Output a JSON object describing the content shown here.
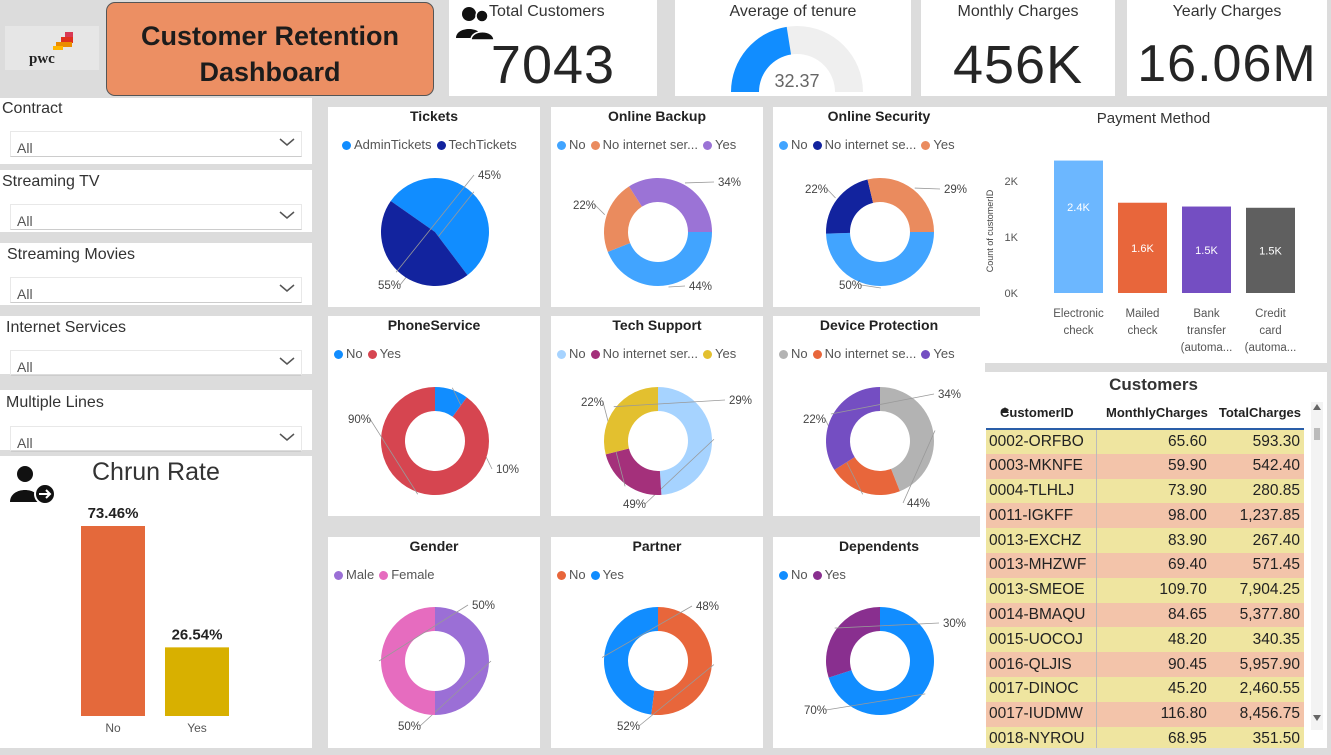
{
  "header": {
    "logo_text": "pwc",
    "title_line1": "Customer Retention",
    "title_line2": "Dashboard"
  },
  "kpis": {
    "total_customers": {
      "label": "Total Customers",
      "value": "7043"
    },
    "avg_tenure": {
      "label": "Average of tenure",
      "value": "32.37",
      "gauge_fraction": 0.45
    },
    "monthly_charges": {
      "label": "Monthly Charges",
      "value": "456K"
    },
    "yearly_charges": {
      "label": "Yearly Charges",
      "value": "16.06M"
    }
  },
  "slicers": [
    {
      "label": "Contract",
      "value": "All"
    },
    {
      "label": "Streaming TV",
      "value": "All"
    },
    {
      "label": "Streaming Movies",
      "value": "All"
    },
    {
      "label": "Internet Services",
      "value": "All"
    },
    {
      "label": "Multiple Lines",
      "value": "All"
    }
  ],
  "churn": {
    "title": "Chrun Rate",
    "bars": [
      {
        "label": "No",
        "value": 73.46,
        "text": "73.46%",
        "color": "#e4693b"
      },
      {
        "label": "Yes",
        "value": 26.54,
        "text": "26.54%",
        "color": "#d8b000"
      }
    ]
  },
  "pies": [
    {
      "title": "Tickets",
      "type": "pie",
      "legend": [
        {
          "label": "AdminTickets",
          "color": "#118dff"
        },
        {
          "label": "TechTickets",
          "color": "#12239e"
        }
      ],
      "labels": [
        "55%",
        "45%"
      ]
    },
    {
      "title": "Online Backup",
      "type": "donut",
      "legend": [
        {
          "label": "No",
          "color": "#41a4ff"
        },
        {
          "label": "No internet ser...",
          "color": "#ea8b5e"
        },
        {
          "label": "Yes",
          "color": "#9b73d6"
        }
      ],
      "labels": [
        "44%",
        "22%",
        "34%"
      ]
    },
    {
      "title": "Online Security",
      "type": "donut",
      "legend": [
        {
          "label": "No",
          "color": "#41a4ff"
        },
        {
          "label": "No internet se...",
          "color": "#12239e"
        },
        {
          "label": "Yes",
          "color": "#ea8b5e"
        }
      ],
      "labels": [
        "50%",
        "22%",
        "29%"
      ]
    },
    {
      "title": "PhoneService",
      "type": "donut",
      "legend": [
        {
          "label": "No",
          "color": "#118dff"
        },
        {
          "label": "Yes",
          "color": "#d64550"
        }
      ],
      "labels": [
        "10%",
        "90%"
      ]
    },
    {
      "title": "Tech Support",
      "type": "donut",
      "legend": [
        {
          "label": "No",
          "color": "#a6d3ff"
        },
        {
          "label": "No internet ser...",
          "color": "#a4307b"
        },
        {
          "label": "Yes",
          "color": "#e3c02f"
        }
      ],
      "labels": [
        "49%",
        "22%",
        "29%"
      ]
    },
    {
      "title": "Device Protection",
      "type": "donut",
      "legend": [
        {
          "label": "No",
          "color": "#b3b3b3"
        },
        {
          "label": "No internet se...",
          "color": "#e8663b"
        },
        {
          "label": "Yes",
          "color": "#744ec2"
        }
      ],
      "labels": [
        "44%",
        "22%",
        "34%"
      ]
    },
    {
      "title": "Gender",
      "type": "donut",
      "legend": [
        {
          "label": "Male",
          "color": "#9b6fd6"
        },
        {
          "label": "Female",
          "color": "#e66cbf"
        }
      ],
      "labels": [
        "50%",
        "50%"
      ]
    },
    {
      "title": "Partner",
      "type": "donut",
      "legend": [
        {
          "label": "No",
          "color": "#e8663b"
        },
        {
          "label": "Yes",
          "color": "#118dff"
        }
      ],
      "labels": [
        "52%",
        "48%"
      ]
    },
    {
      "title": "Dependents",
      "type": "donut",
      "legend": [
        {
          "label": "No",
          "color": "#118dff"
        },
        {
          "label": "Yes",
          "color": "#892f8f"
        }
      ],
      "labels": [
        "70%",
        "30%"
      ]
    }
  ],
  "chart_data": [
    {
      "type": "pie",
      "title": "Tickets",
      "categories": [
        "AdminTickets",
        "TechTickets"
      ],
      "values": [
        55,
        45
      ]
    },
    {
      "type": "pie",
      "title": "Online Backup",
      "categories": [
        "No",
        "No internet ser...",
        "Yes"
      ],
      "values": [
        44,
        22,
        34
      ]
    },
    {
      "type": "pie",
      "title": "Online Security",
      "categories": [
        "No",
        "No internet se...",
        "Yes"
      ],
      "values": [
        50,
        22,
        29
      ]
    },
    {
      "type": "pie",
      "title": "PhoneService",
      "categories": [
        "No",
        "Yes"
      ],
      "values": [
        10,
        90
      ]
    },
    {
      "type": "pie",
      "title": "Tech Support",
      "categories": [
        "No",
        "No internet ser...",
        "Yes"
      ],
      "values": [
        49,
        22,
        29
      ]
    },
    {
      "type": "pie",
      "title": "Device Protection",
      "categories": [
        "No",
        "No internet se...",
        "Yes"
      ],
      "values": [
        44,
        22,
        34
      ]
    },
    {
      "type": "pie",
      "title": "Gender",
      "categories": [
        "Male",
        "Female"
      ],
      "values": [
        50,
        50
      ]
    },
    {
      "type": "pie",
      "title": "Partner",
      "categories": [
        "No",
        "Yes"
      ],
      "values": [
        52,
        48
      ]
    },
    {
      "type": "pie",
      "title": "Dependents",
      "categories": [
        "No",
        "Yes"
      ],
      "values": [
        70,
        30
      ]
    },
    {
      "type": "bar",
      "title": "Chrun Rate",
      "categories": [
        "No",
        "Yes"
      ],
      "values": [
        73.46,
        26.54
      ]
    },
    {
      "type": "bar",
      "title": "Payment Method",
      "ylabel": "Count of customerID",
      "categories": [
        "Electronic check",
        "Mailed check",
        "Bank transfer (automa...",
        "Credit card (automa..."
      ],
      "values": [
        2365,
        1612,
        1544,
        1522
      ],
      "value_labels": [
        "2.4K",
        "1.6K",
        "1.5K",
        "1.5K"
      ],
      "yticks": [
        "0K",
        "1K",
        "2K"
      ],
      "ylim": [
        0,
        2600
      ]
    }
  ],
  "payment": {
    "title": "Payment Method",
    "ylabel": "Count of customerID",
    "yticks": [
      {
        "label": "2K",
        "value": 2000
      },
      {
        "label": "1K",
        "value": 1000
      },
      {
        "label": "0K",
        "value": 0
      }
    ],
    "bars": [
      {
        "label1": "Electronic",
        "label2": "check",
        "label3": "",
        "value": 2365,
        "text": "2.4K",
        "color": "#6cb7ff"
      },
      {
        "label1": "Mailed",
        "label2": "check",
        "label3": "",
        "value": 1612,
        "text": "1.6K",
        "color": "#e8663b"
      },
      {
        "label1": "Bank",
        "label2": "transfer",
        "label3": "(automa...",
        "value": 1544,
        "text": "1.5K",
        "color": "#744ec2"
      },
      {
        "label1": "Credit",
        "label2": "card",
        "label3": "(automa...",
        "value": 1522,
        "text": "1.5K",
        "color": "#5f5f5f"
      }
    ]
  },
  "customers": {
    "title": "Customers",
    "columns": [
      "CustomerID",
      "MonthlyCharges",
      "TotalCharges"
    ],
    "rows": [
      [
        "0002-ORFBO",
        "65.60",
        "593.30"
      ],
      [
        "0003-MKNFE",
        "59.90",
        "542.40"
      ],
      [
        "0004-TLHLJ",
        "73.90",
        "280.85"
      ],
      [
        "0011-IGKFF",
        "98.00",
        "1,237.85"
      ],
      [
        "0013-EXCHZ",
        "83.90",
        "267.40"
      ],
      [
        "0013-MHZWF",
        "69.40",
        "571.45"
      ],
      [
        "0013-SMEOE",
        "109.70",
        "7,904.25"
      ],
      [
        "0014-BMAQU",
        "84.65",
        "5,377.80"
      ],
      [
        "0015-UOCOJ",
        "48.20",
        "340.35"
      ],
      [
        "0016-QLJIS",
        "90.45",
        "5,957.90"
      ],
      [
        "0017-DINOC",
        "45.20",
        "2,460.55"
      ],
      [
        "0017-IUDMW",
        "116.80",
        "8,456.75"
      ],
      [
        "0018-NYROU",
        "68.95",
        "351.50"
      ]
    ]
  }
}
